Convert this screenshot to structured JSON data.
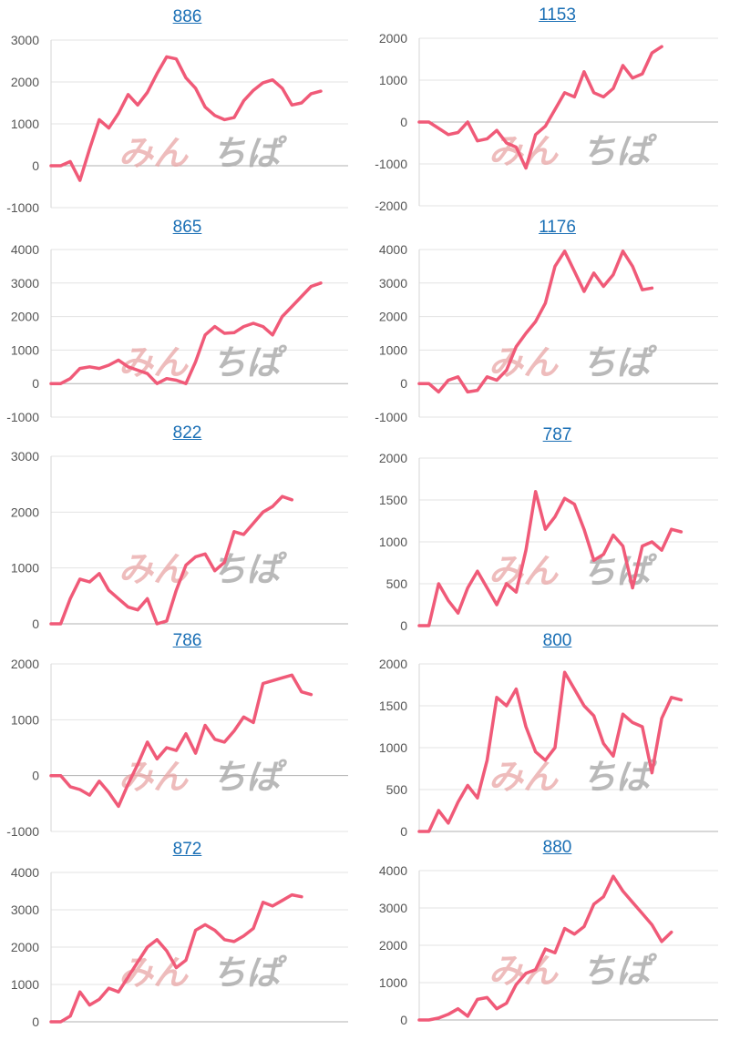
{
  "chart_data": [
    {
      "type": "line",
      "title": "886",
      "ylim": [
        -1000,
        3000
      ],
      "yticks": [
        "3000",
        "2000",
        "1000",
        "0",
        "-1000"
      ],
      "color": "#f05a78",
      "values": [
        0,
        0,
        100,
        -350,
        400,
        1100,
        900,
        1250,
        1700,
        1450,
        1750,
        2200,
        2600,
        2550,
        2100,
        1850,
        1400,
        1200,
        1100,
        1150,
        1550,
        1800,
        1980,
        2050,
        1850,
        1450,
        1500,
        1720,
        1780
      ]
    },
    {
      "type": "line",
      "title": "1153",
      "ylim": [
        -2000,
        2000
      ],
      "yticks": [
        "2000",
        "1000",
        "0",
        "-1000",
        "-2000"
      ],
      "color": "#f05a78",
      "values": [
        0,
        0,
        -150,
        -300,
        -250,
        0,
        -450,
        -400,
        -200,
        -500,
        -600,
        -1100,
        -300,
        -100,
        300,
        700,
        600,
        1200,
        700,
        600,
        800,
        1350,
        1050,
        1150,
        1650,
        1800
      ]
    },
    {
      "type": "line",
      "title": "865",
      "ylim": [
        -1000,
        4000
      ],
      "yticks": [
        "4000",
        "3000",
        "2000",
        "1000",
        "0",
        "-1000"
      ],
      "color": "#f05a78",
      "values": [
        0,
        0,
        150,
        450,
        500,
        450,
        550,
        700,
        500,
        400,
        300,
        0,
        150,
        100,
        0,
        650,
        1450,
        1700,
        1500,
        1520,
        1700,
        1800,
        1700,
        1450,
        2000,
        2300,
        2600,
        2900,
        3000
      ]
    },
    {
      "type": "line",
      "title": "1176",
      "ylim": [
        -1000,
        4000
      ],
      "yticks": [
        "4000",
        "3000",
        "2000",
        "1000",
        "0",
        "-1000"
      ],
      "color": "#f05a78",
      "values": [
        0,
        0,
        -250,
        100,
        200,
        -250,
        -200,
        200,
        100,
        400,
        1100,
        1500,
        1850,
        2400,
        3500,
        3950,
        3350,
        2750,
        3300,
        2900,
        3250,
        3950,
        3500,
        2800,
        2850
      ]
    },
    {
      "type": "line",
      "title": "822",
      "ylim": [
        0,
        3000
      ],
      "yticks": [
        "3000",
        "2000",
        "1000",
        "0"
      ],
      "color": "#f05a78",
      "values": [
        0,
        0,
        450,
        800,
        750,
        900,
        600,
        450,
        300,
        250,
        450,
        0,
        50,
        600,
        1050,
        1200,
        1250,
        950,
        1100,
        1650,
        1600,
        1800,
        2000,
        2100,
        2280,
        2220
      ]
    },
    {
      "type": "line",
      "title": "787",
      "ylim": [
        0,
        2000
      ],
      "yticks": [
        "2000",
        "1500",
        "1000",
        "500",
        "0"
      ],
      "color": "#f05a78",
      "values": [
        0,
        0,
        500,
        300,
        150,
        450,
        650,
        450,
        250,
        500,
        400,
        900,
        1600,
        1150,
        1300,
        1520,
        1450,
        1150,
        780,
        850,
        1080,
        950,
        450,
        950,
        1000,
        900,
        1150,
        1120
      ]
    },
    {
      "type": "line",
      "title": "786",
      "ylim": [
        -1000,
        2000
      ],
      "yticks": [
        "2000",
        "1000",
        "0",
        "-1000"
      ],
      "color": "#f05a78",
      "values": [
        0,
        0,
        -200,
        -250,
        -350,
        -100,
        -300,
        -550,
        -150,
        200,
        600,
        300,
        500,
        450,
        750,
        400,
        900,
        650,
        600,
        800,
        1050,
        950,
        1650,
        1700,
        1750,
        1800,
        1500,
        1450
      ]
    },
    {
      "type": "line",
      "title": "800",
      "ylim": [
        0,
        2000
      ],
      "yticks": [
        "2000",
        "1500",
        "1000",
        "500",
        "0"
      ],
      "color": "#f05a78",
      "values": [
        0,
        0,
        250,
        100,
        350,
        550,
        400,
        850,
        1600,
        1500,
        1700,
        1250,
        950,
        850,
        1000,
        1900,
        1700,
        1500,
        1380,
        1050,
        900,
        1400,
        1300,
        1250,
        700,
        1350,
        1600,
        1570
      ]
    },
    {
      "type": "line",
      "title": "872",
      "ylim": [
        0,
        4000
      ],
      "yticks": [
        "4000",
        "3000",
        "2000",
        "1000",
        "0"
      ],
      "color": "#f05a78",
      "values": [
        0,
        0,
        150,
        800,
        450,
        600,
        900,
        800,
        1200,
        1600,
        2000,
        2200,
        1900,
        1450,
        1650,
        2450,
        2600,
        2450,
        2200,
        2150,
        2300,
        2500,
        3200,
        3100,
        3250,
        3400,
        3350
      ]
    },
    {
      "type": "line",
      "title": "880",
      "ylim": [
        0,
        4000
      ],
      "yticks": [
        "4000",
        "3000",
        "2000",
        "1000",
        "0"
      ],
      "color": "#f05a78",
      "values": [
        0,
        0,
        50,
        150,
        300,
        100,
        550,
        600,
        300,
        450,
        950,
        1250,
        1350,
        1900,
        1800,
        2450,
        2300,
        2500,
        3100,
        3300,
        3850,
        3450,
        3150,
        2850,
        2550,
        2100,
        2350
      ]
    }
  ],
  "watermark": {
    "part1": "みん",
    "part2": "ちぱ"
  }
}
